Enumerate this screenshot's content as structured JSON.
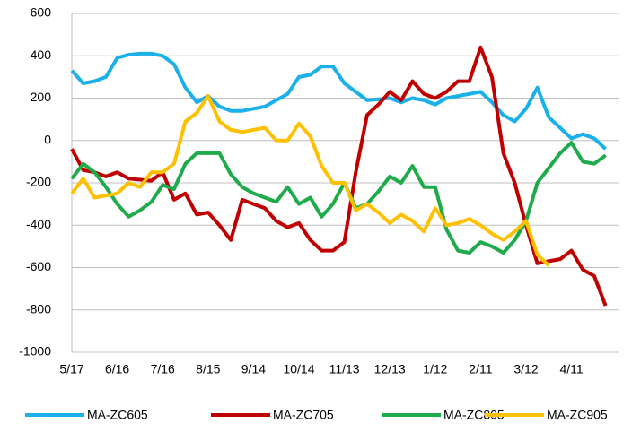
{
  "chart_data": {
    "type": "line",
    "categories": [
      "5/17",
      null,
      null,
      null,
      "6/16",
      null,
      null,
      null,
      "7/16",
      null,
      null,
      null,
      "8/15",
      null,
      null,
      null,
      "9/14",
      null,
      null,
      null,
      "10/14",
      null,
      null,
      null,
      "11/13",
      null,
      null,
      null,
      "12/13",
      null,
      null,
      null,
      "1/12",
      null,
      null,
      null,
      "2/11",
      null,
      null,
      null,
      "3/12",
      null,
      null,
      null,
      "4/11",
      null,
      null,
      null
    ],
    "series": [
      {
        "name": "MA-ZC605",
        "color": "#1ab0ea",
        "values": [
          330,
          270,
          280,
          300,
          390,
          405,
          410,
          410,
          400,
          360,
          250,
          180,
          210,
          160,
          140,
          140,
          150,
          160,
          190,
          220,
          300,
          310,
          350,
          350,
          270,
          230,
          190,
          195,
          200,
          180,
          200,
          190,
          170,
          200,
          210,
          220,
          230,
          180,
          120,
          90,
          150,
          250,
          110,
          60,
          10,
          30,
          10,
          -40
        ]
      },
      {
        "name": "MA-ZC705",
        "color": "#c00000",
        "values": [
          -40,
          -140,
          -150,
          -170,
          -150,
          -180,
          -185,
          -190,
          -150,
          -280,
          -250,
          -350,
          -340,
          -400,
          -470,
          -280,
          -300,
          -320,
          -380,
          -410,
          -390,
          -470,
          -520,
          -520,
          -480,
          -150,
          120,
          170,
          230,
          190,
          280,
          220,
          200,
          230,
          280,
          280,
          440,
          300,
          -60,
          -200,
          -400,
          -580,
          -570,
          -560,
          -520,
          -610,
          -640,
          -780
        ]
      },
      {
        "name": "MA-ZC805",
        "color": "#1faa4b",
        "values": [
          -180,
          -110,
          -150,
          -220,
          -300,
          -360,
          -330,
          -290,
          -210,
          -230,
          -110,
          -60,
          -60,
          -60,
          -160,
          -220,
          -250,
          -270,
          -290,
          -220,
          -300,
          -270,
          -360,
          -300,
          -200,
          -320,
          -300,
          -240,
          -170,
          -200,
          -120,
          -220,
          -220,
          -420,
          -520,
          -530,
          -480,
          -500,
          -530,
          -470,
          -380,
          -200,
          -130,
          -60,
          -10,
          -100,
          -110,
          -70
        ]
      },
      {
        "name": "MA-ZC905",
        "color": "#ffc000",
        "values": [
          -250,
          -180,
          -270,
          -260,
          -250,
          -200,
          -220,
          -150,
          -150,
          -110,
          90,
          130,
          210,
          90,
          50,
          40,
          50,
          60,
          0,
          0,
          80,
          20,
          -120,
          -200,
          -200,
          -330,
          -300,
          -340,
          -390,
          -350,
          -380,
          -430,
          -320,
          -400,
          -390,
          -370,
          -400,
          -440,
          -470,
          -430,
          -380,
          -540,
          -590,
          null,
          null,
          null,
          null,
          null
        ]
      }
    ],
    "ylim": [
      -1000,
      600
    ],
    "yticks": [
      -1000,
      -800,
      -600,
      -400,
      -200,
      0,
      200,
      400,
      600
    ],
    "grid": true,
    "legend": "bottom"
  }
}
